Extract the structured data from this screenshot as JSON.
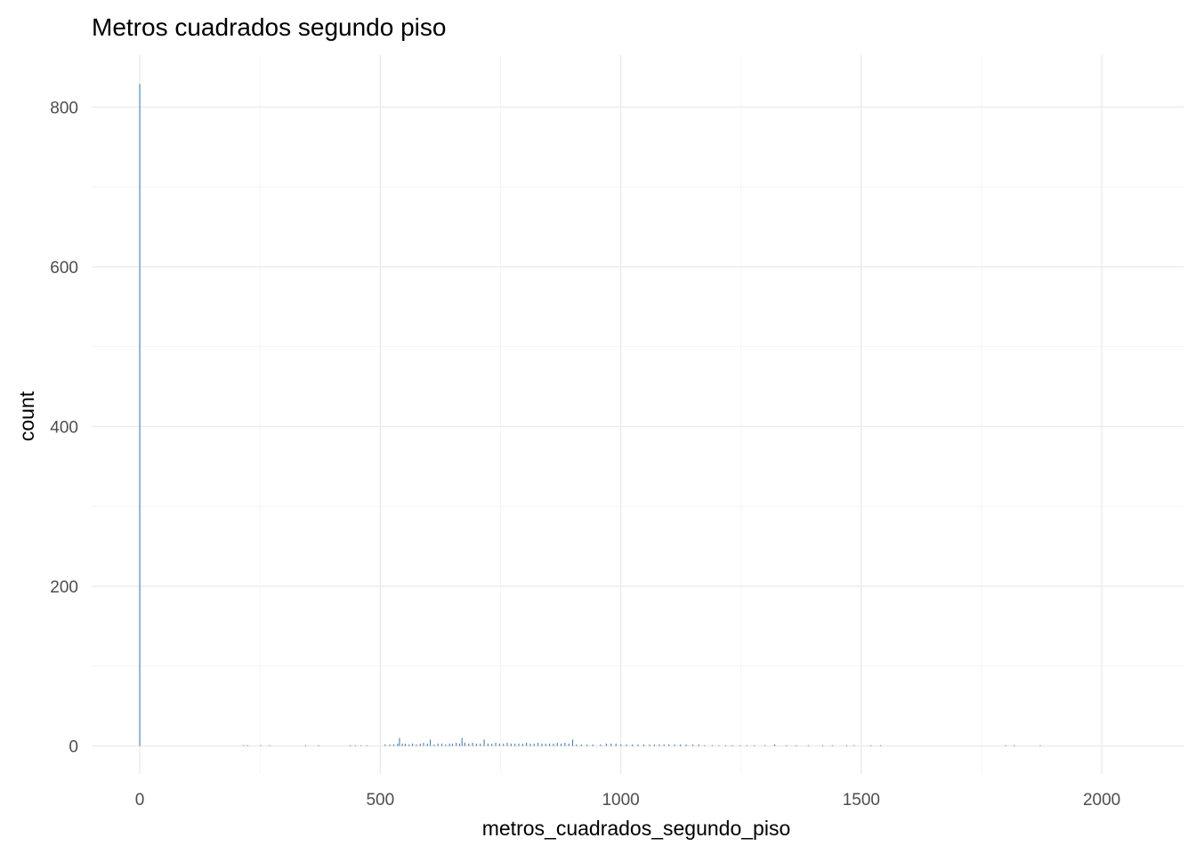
{
  "chart_data": {
    "type": "bar",
    "title": "Metros cuadrados segundo piso",
    "xlabel": "metros_cuadrados_segundo_piso",
    "ylabel": "count",
    "xlim": [
      -100,
      2170
    ],
    "ylim": [
      -35,
      865
    ],
    "x_ticks": [
      0,
      500,
      1000,
      1500,
      2000
    ],
    "y_ticks": [
      0,
      200,
      400,
      600,
      800
    ],
    "x_ticks_minor": [
      250,
      750,
      1250,
      1750
    ],
    "y_ticks_minor": [
      100,
      300,
      500,
      700
    ],
    "bar_color": "#4682b4",
    "bar_width": 1,
    "grid": true,
    "x": [
      0,
      216,
      224,
      252,
      270,
      345,
      372,
      438,
      448,
      460,
      472,
      510,
      520,
      528,
      536,
      540,
      546,
      552,
      560,
      567,
      575,
      583,
      590,
      598,
      604,
      612,
      620,
      628,
      636,
      644,
      650,
      658,
      665,
      670,
      676,
      684,
      692,
      700,
      708,
      716,
      724,
      732,
      740,
      748,
      756,
      764,
      772,
      780,
      788,
      796,
      804,
      812,
      820,
      828,
      836,
      844,
      852,
      860,
      868,
      876,
      884,
      892,
      900,
      908,
      918,
      930,
      942,
      958,
      970,
      980,
      990,
      1000,
      1012,
      1024,
      1036,
      1048,
      1060,
      1070,
      1080,
      1090,
      1100,
      1112,
      1124,
      1136,
      1150,
      1162,
      1174,
      1190,
      1204,
      1218,
      1232,
      1248,
      1262,
      1278,
      1300,
      1320,
      1345,
      1365,
      1390,
      1420,
      1440,
      1470,
      1485,
      1520,
      1540,
      1800,
      1818,
      1872
    ],
    "values": [
      829,
      1,
      1,
      1,
      1,
      1,
      1,
      1,
      1,
      1,
      1,
      2,
      2,
      2,
      3,
      10,
      3,
      3,
      2,
      3,
      2,
      3,
      4,
      3,
      8,
      2,
      3,
      3,
      2,
      3,
      3,
      4,
      3,
      10,
      4,
      3,
      4,
      3,
      3,
      8,
      3,
      3,
      4,
      3,
      3,
      4,
      3,
      3,
      3,
      3,
      4,
      3,
      3,
      4,
      3,
      3,
      3,
      3,
      4,
      3,
      4,
      3,
      8,
      2,
      2,
      2,
      2,
      2,
      3,
      3,
      3,
      2,
      2,
      2,
      2,
      2,
      2,
      2,
      2,
      2,
      2,
      2,
      2,
      2,
      2,
      2,
      1,
      1,
      1,
      1,
      1,
      1,
      1,
      1,
      1,
      2,
      1,
      1,
      1,
      1,
      1,
      1,
      1,
      1,
      1,
      1,
      1,
      1
    ]
  }
}
